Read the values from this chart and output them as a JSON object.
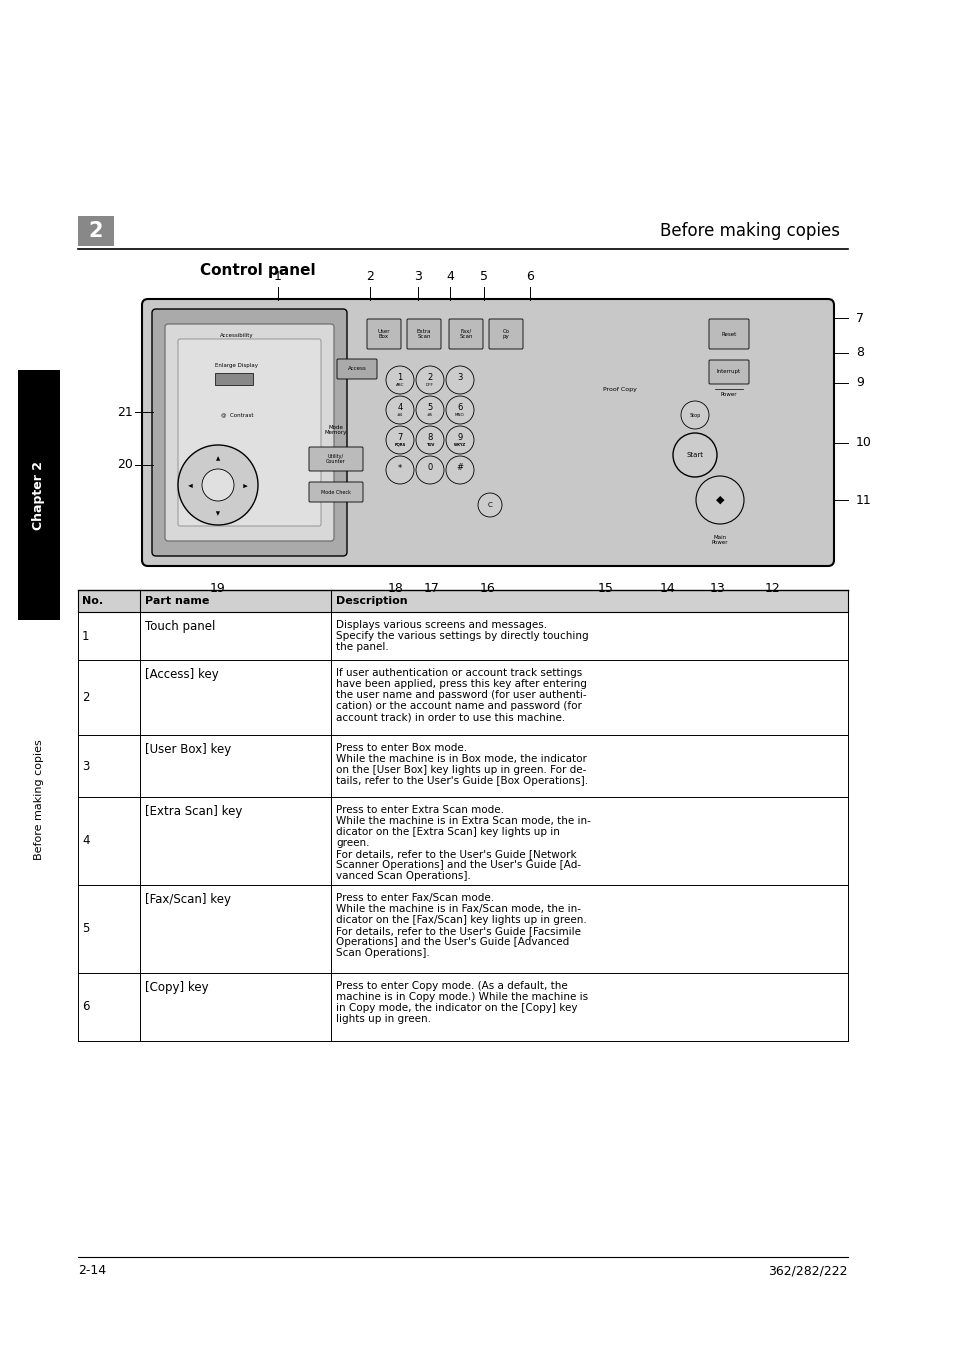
{
  "page_bg": "#ffffff",
  "header_title": "Before making copies",
  "section_title": "Control panel",
  "sidebar_text": "Before making copies",
  "sidebar_chapter": "Chapter 2",
  "page_number_left": "2-14",
  "page_number_right": "362/282/222",
  "table_headers": [
    "No.",
    "Part name",
    "Description"
  ],
  "table_rows": [
    [
      "1",
      "Touch panel",
      "Displays various screens and messages.\nSpecify the various settings by directly touching\nthe panel."
    ],
    [
      "2",
      "[Access] key",
      "If user authentication or account track settings\nhave been applied, press this key after entering\nthe user name and password (for user authenti-\ncation) or the account name and password (for\naccount track) in order to use this machine."
    ],
    [
      "3",
      "[User Box] key",
      "Press to enter Box mode.\nWhile the machine is in Box mode, the indicator\non the [User Box] key lights up in green. For de-\ntails, refer to the User's Guide [Box Operations]."
    ],
    [
      "4",
      "[Extra Scan] key",
      "Press to enter Extra Scan mode.\nWhile the machine is in Extra Scan mode, the in-\ndicator on the [Extra Scan] key lights up in\ngreen.\nFor details, refer to the User's Guide [Network\nScanner Operations] and the User's Guide [Ad-\nvanced Scan Operations]."
    ],
    [
      "5",
      "[Fax/Scan] key",
      "Press to enter Fax/Scan mode.\nWhile the machine is in Fax/Scan mode, the in-\ndicator on the [Fax/Scan] key lights up in green.\nFor details, refer to the User's Guide [Facsimile\nOperations] and the User's Guide [Advanced\nScan Operations]."
    ],
    [
      "6",
      "[Copy] key",
      "Press to enter Copy mode. (As a default, the\nmachine is in Copy mode.) While the machine is\nin Copy mode, the indicator on the [Copy] key\nlights up in green."
    ]
  ]
}
